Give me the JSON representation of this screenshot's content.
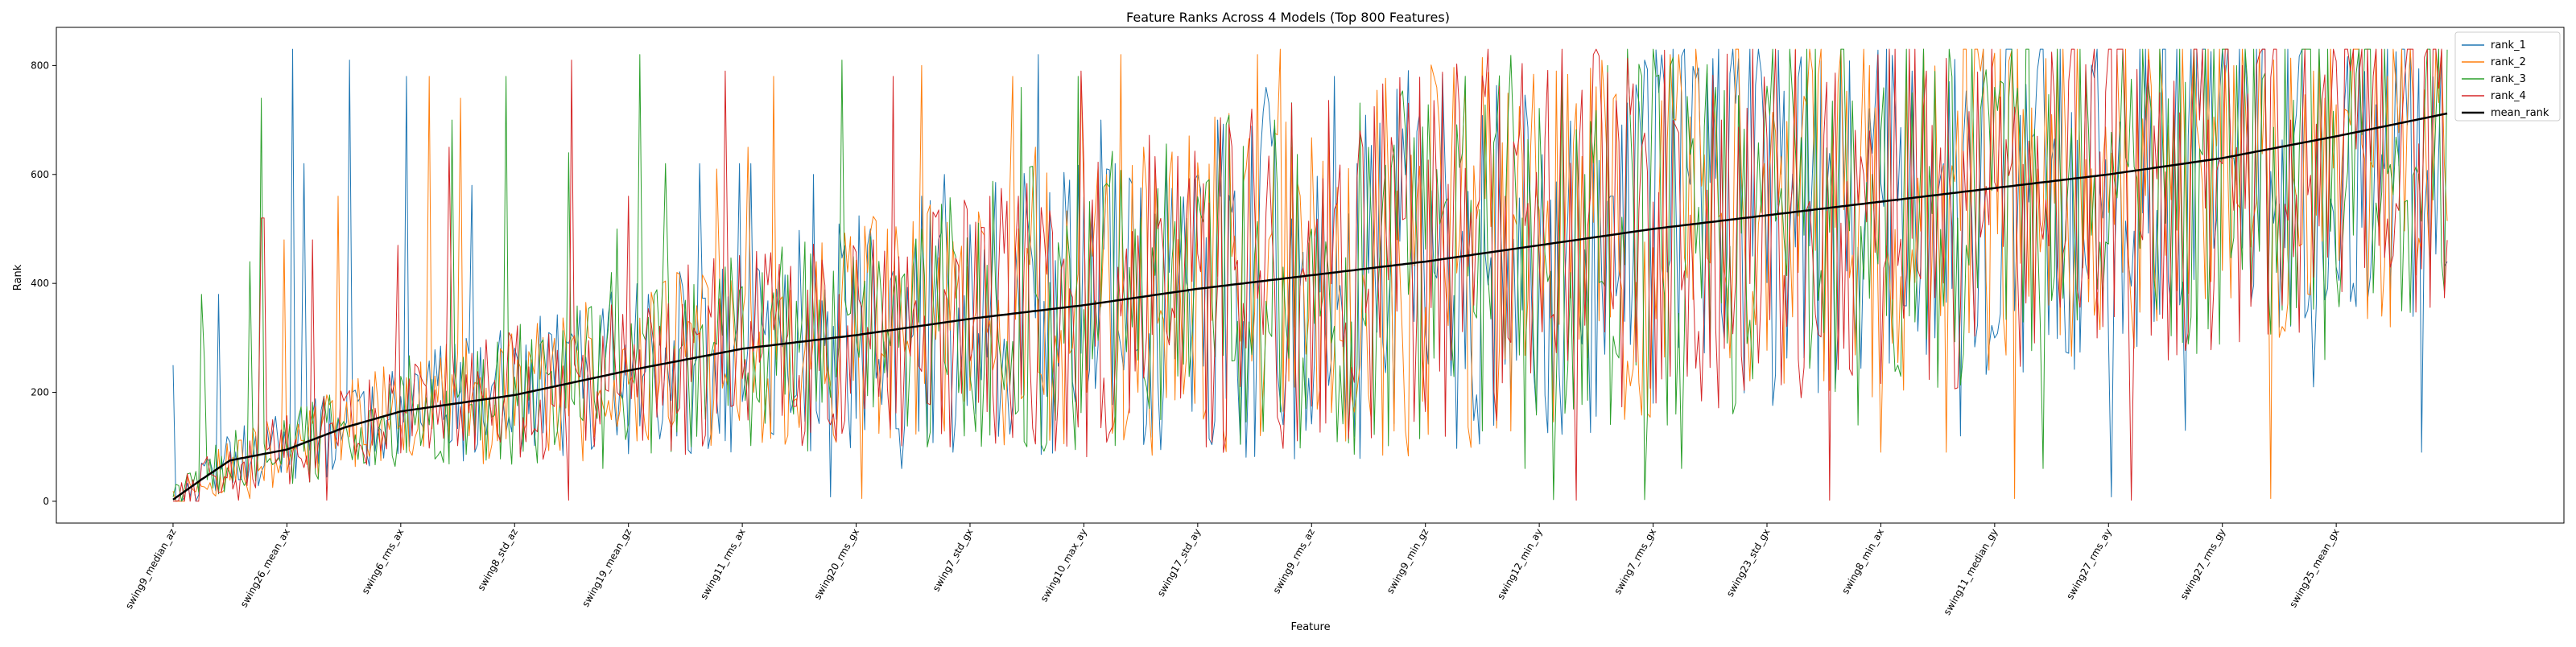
{
  "chart_data": {
    "type": "line",
    "title": "Feature Ranks Across 4 Models (Top 800 Features)",
    "xlabel": "Feature",
    "ylabel": "Rank",
    "x_count": 800,
    "xlim": [
      -41,
      840
    ],
    "ylim": [
      -40,
      870
    ],
    "yticks": [
      0,
      200,
      400,
      600,
      800
    ],
    "xticks": [
      {
        "index": 0,
        "label": "swing9_median_az"
      },
      {
        "index": 40,
        "label": "swing26_mean_ax"
      },
      {
        "index": 80,
        "label": "swing6_rms_ax"
      },
      {
        "index": 120,
        "label": "swing8_std_az"
      },
      {
        "index": 160,
        "label": "swing19_mean_gz"
      },
      {
        "index": 200,
        "label": "swing11_rms_ax"
      },
      {
        "index": 240,
        "label": "swing20_rms_gx"
      },
      {
        "index": 280,
        "label": "swing7_std_gx"
      },
      {
        "index": 320,
        "label": "swing10_max_ay"
      },
      {
        "index": 360,
        "label": "swing17_std_ay"
      },
      {
        "index": 400,
        "label": "swing9_rms_az"
      },
      {
        "index": 440,
        "label": "swing9_min_gz"
      },
      {
        "index": 480,
        "label": "swing12_min_ay"
      },
      {
        "index": 520,
        "label": "swing7_rms_gx"
      },
      {
        "index": 560,
        "label": "swing23_std_gx"
      },
      {
        "index": 600,
        "label": "swing8_min_ax"
      },
      {
        "index": 640,
        "label": "swing11_median_gy"
      },
      {
        "index": 680,
        "label": "swing27_rms_ay"
      },
      {
        "index": 720,
        "label": "swing27_rms_gy"
      },
      {
        "index": 760,
        "label": "swing25_mean_gx"
      }
    ],
    "series": [
      {
        "name": "rank_1",
        "color": "#1f77b4",
        "line_width": 1,
        "mean_rank_anchor": [
          [
            0,
            3
          ],
          [
            10,
            40
          ],
          [
            20,
            75
          ],
          [
            40,
            95
          ],
          [
            60,
            135
          ],
          [
            80,
            165
          ],
          [
            120,
            195
          ],
          [
            160,
            240
          ],
          [
            200,
            280
          ],
          [
            240,
            305
          ],
          [
            280,
            335
          ],
          [
            320,
            360
          ],
          [
            360,
            390
          ],
          [
            400,
            415
          ],
          [
            440,
            440
          ],
          [
            480,
            470
          ],
          [
            520,
            500
          ],
          [
            560,
            525
          ],
          [
            600,
            550
          ],
          [
            640,
            575
          ],
          [
            680,
            600
          ],
          [
            720,
            630
          ],
          [
            760,
            670
          ],
          [
            799,
            712
          ]
        ],
        "sampled_values": [
          8,
          120,
          60,
          210,
          90,
          330,
          150,
          440,
          220,
          380,
          560,
          300,
          130,
          620,
          420,
          700,
          250,
          580,
          780,
          460,
          620,
          810,
          520,
          690,
          830,
          600,
          760,
          820
        ]
      },
      {
        "name": "rank_2",
        "color": "#ff7f0e",
        "line_width": 1,
        "sampled_values": [
          5,
          90,
          200,
          110,
          250,
          560,
          180,
          790,
          320,
          740,
          620,
          260,
          820,
          420,
          650,
          800,
          200,
          560,
          760,
          610,
          820,
          480,
          710,
          800,
          600,
          780,
          830,
          650
        ]
      },
      {
        "name": "rank_3",
        "color": "#2ca02c",
        "line_width": 1,
        "sampled_values": [
          3,
          60,
          140,
          440,
          260,
          420,
          160,
          600,
          300,
          700,
          520,
          250,
          620,
          500,
          760,
          380,
          640,
          720,
          520,
          780,
          600,
          810,
          680,
          760,
          820,
          700,
          800,
          740
        ]
      },
      {
        "name": "rank_4",
        "color": "#d62728",
        "line_width": 1,
        "sampled_values": [
          2,
          50,
          180,
          260,
          470,
          300,
          650,
          790,
          360,
          810,
          480,
          700,
          560,
          800,
          660,
          520,
          780,
          620,
          830,
          700,
          790,
          560,
          820,
          330,
          760,
          810,
          700,
          790
        ]
      },
      {
        "name": "mean_rank",
        "color": "#000000",
        "line_width": 2.5
      }
    ],
    "legend": {
      "placement": "top-right",
      "entries": [
        "rank_1",
        "rank_2",
        "rank_3",
        "rank_4",
        "mean_rank"
      ]
    },
    "grid": false
  }
}
